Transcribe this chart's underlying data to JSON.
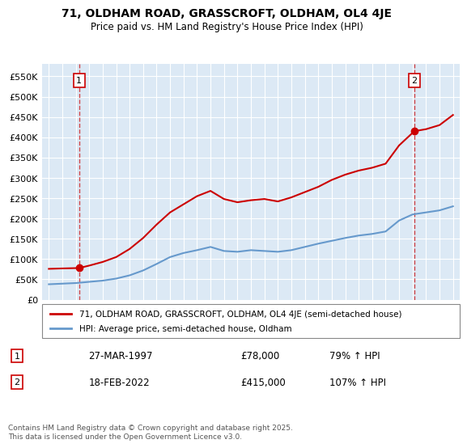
{
  "title": "71, OLDHAM ROAD, GRASSCROFT, OLDHAM, OL4 4JE",
  "subtitle": "Price paid vs. HM Land Registry's House Price Index (HPI)",
  "legend_property": "71, OLDHAM ROAD, GRASSCROFT, OLDHAM, OL4 4JE (semi-detached house)",
  "legend_hpi": "HPI: Average price, semi-detached house, Oldham",
  "footnote": "Contains HM Land Registry data © Crown copyright and database right 2025.\nThis data is licensed under the Open Government Licence v3.0.",
  "transaction1_date": "27-MAR-1997",
  "transaction1_price": 78000,
  "transaction1_label": "1",
  "transaction1_note": "79% ↑ HPI",
  "transaction2_date": "18-FEB-2022",
  "transaction2_price": 415000,
  "transaction2_label": "2",
  "transaction2_note": "107% ↑ HPI",
  "property_color": "#cc0000",
  "hpi_color": "#6699cc",
  "background_color": "#dce9f5",
  "plot_bg": "#dce9f5",
  "ylim": [
    0,
    580000
  ],
  "yticks": [
    0,
    50000,
    100000,
    150000,
    200000,
    250000,
    300000,
    350000,
    400000,
    450000,
    500000,
    550000
  ],
  "hpi_years": [
    1995,
    1996,
    1997,
    1998,
    1999,
    2000,
    2001,
    2002,
    2003,
    2004,
    2005,
    2006,
    2007,
    2008,
    2009,
    2010,
    2011,
    2012,
    2013,
    2014,
    2015,
    2016,
    2017,
    2018,
    2019,
    2020,
    2021,
    2022,
    2023,
    2024,
    2025
  ],
  "hpi_values": [
    38000,
    39500,
    41000,
    44000,
    47000,
    52000,
    60000,
    72000,
    88000,
    105000,
    115000,
    122000,
    130000,
    120000,
    118000,
    122000,
    120000,
    118000,
    122000,
    130000,
    138000,
    145000,
    152000,
    158000,
    162000,
    168000,
    195000,
    210000,
    215000,
    220000,
    230000
  ],
  "property_years": [
    1995,
    1996,
    1997.25,
    1998,
    1999,
    2000,
    2001,
    2002,
    2003,
    2004,
    2005,
    2006,
    2007,
    2008,
    2009,
    2010,
    2011,
    2012,
    2013,
    2014,
    2015,
    2016,
    2017,
    2018,
    2019,
    2020,
    2021,
    2022.13,
    2023,
    2024,
    2025
  ],
  "property_values": [
    76000,
    77000,
    78000,
    84000,
    93000,
    105000,
    125000,
    152000,
    185000,
    215000,
    235000,
    255000,
    268000,
    248000,
    240000,
    245000,
    248000,
    242000,
    252000,
    265000,
    278000,
    295000,
    308000,
    318000,
    325000,
    335000,
    380000,
    415000,
    420000,
    430000,
    455000
  ]
}
